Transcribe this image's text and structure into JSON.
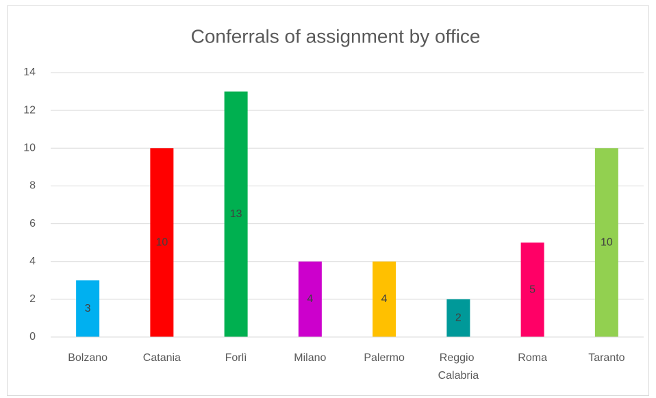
{
  "chart_data": {
    "type": "bar",
    "title": "Conferrals of assignment by office",
    "categories": [
      "Bolzano",
      "Catania",
      "Forlì",
      "Milano",
      "Palermo",
      "Reggio Calabria",
      "Roma",
      "Taranto"
    ],
    "values": [
      3,
      10,
      13,
      4,
      4,
      2,
      5,
      10
    ],
    "colors": [
      "#00b0f0",
      "#ff0000",
      "#00b050",
      "#cc00cc",
      "#ffc000",
      "#009999",
      "#ff0066",
      "#92d050"
    ],
    "ylim": [
      0,
      14
    ],
    "yticks": [
      0,
      2,
      4,
      6,
      8,
      10,
      12,
      14
    ],
    "grid": true,
    "data_labels": true
  }
}
